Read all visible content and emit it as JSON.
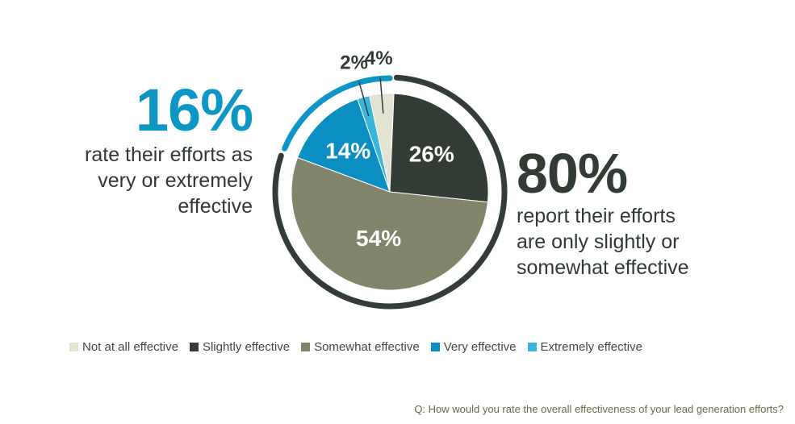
{
  "chart_data": {
    "type": "pie",
    "categories": [
      "Not at all effective",
      "Slightly effective",
      "Somewhat effective",
      "Very effective",
      "Extremely effective"
    ],
    "values": [
      4,
      26,
      54,
      14,
      2
    ],
    "value_labels": [
      "4%",
      "26%",
      "54%",
      "14%",
      "2%"
    ],
    "colors": [
      "#e3e3d3",
      "#333d35",
      "#83846c",
      "#0b8fc2",
      "#3ab6dc"
    ],
    "legend_position": "bottom",
    "question": "Q: How would you rate the overall effectiveness of your lead generation efforts?"
  },
  "callouts": {
    "left": {
      "value": "16%",
      "text_lines": [
        "rate their efforts as",
        "very or extremely",
        "effective"
      ],
      "color": "#0b96c6"
    },
    "right": {
      "value": "80%",
      "text_lines": [
        "report their efforts",
        "are only slightly or",
        "somewhat effective"
      ],
      "color": "#323c34"
    }
  }
}
